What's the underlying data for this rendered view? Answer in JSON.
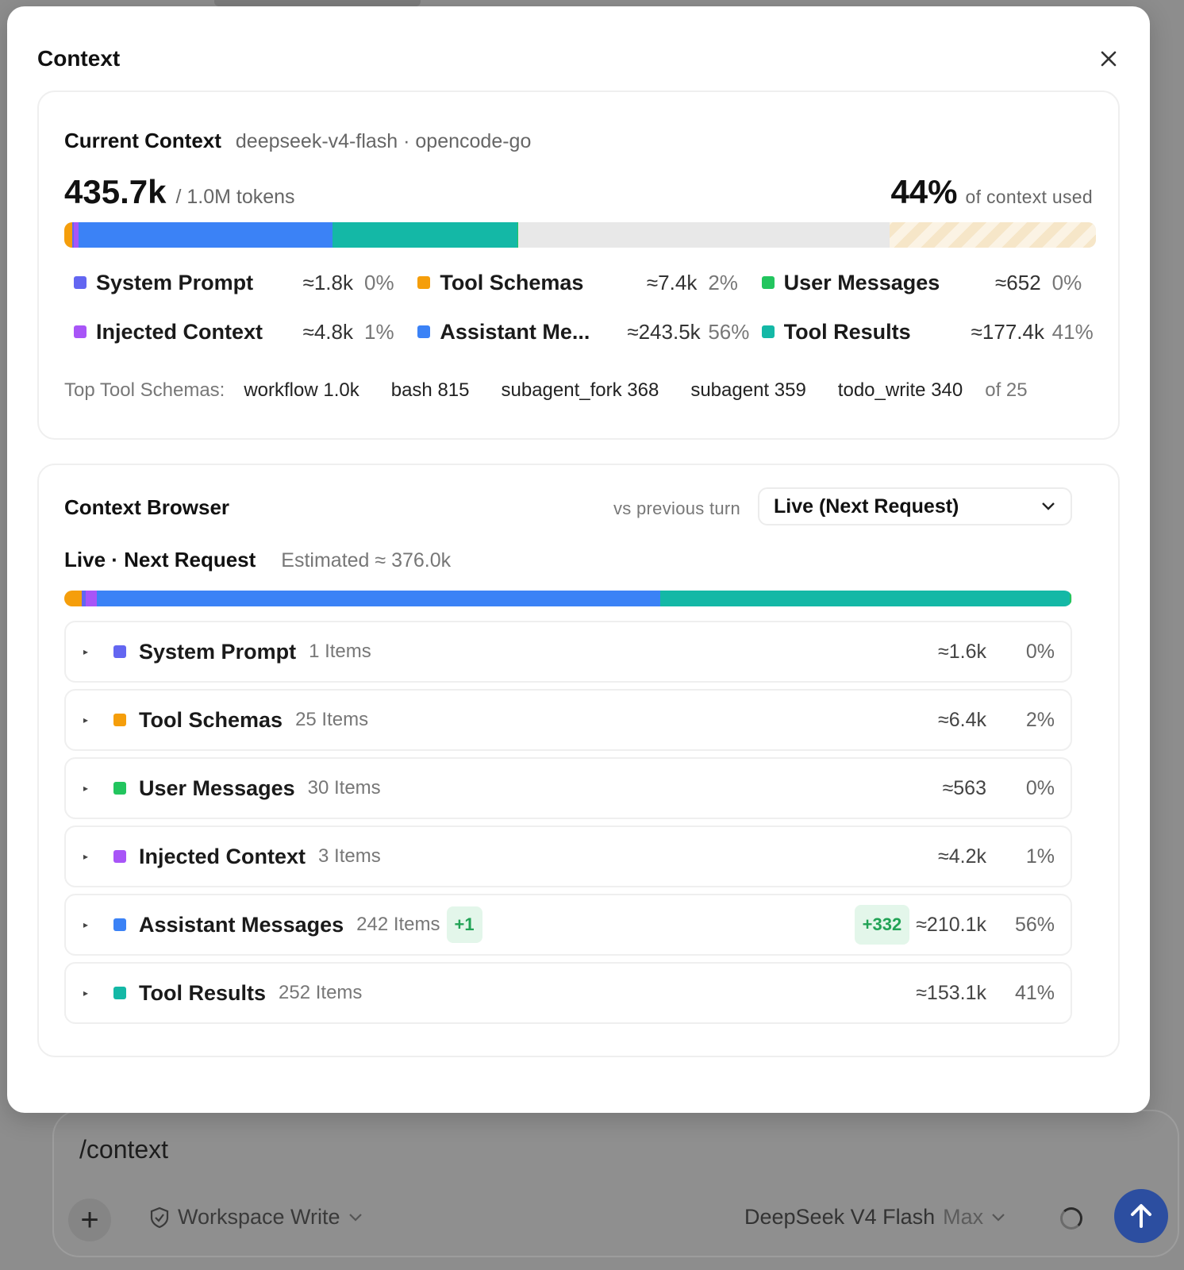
{
  "background": {
    "composer": {
      "input_text": "/context",
      "permission_label": "Workspace Write",
      "model_label": "DeepSeek V4 Flash",
      "model_variant": "Max"
    }
  },
  "modal": {
    "title": "Context",
    "current": {
      "title": "Current Context",
      "model": "deepseek-v4-flash · opencode-go",
      "tokens_used": "435.7k",
      "tokens_total": "/ 1.0M tokens",
      "percent": "44%",
      "percent_label": "of context used",
      "usage_fraction": 0.44,
      "reserved_fraction": 0.2,
      "legend": [
        {
          "name": "System Prompt",
          "value": "≈1.8k",
          "pct": "0%",
          "color": "#6366f1",
          "share": 0.004
        },
        {
          "name": "Tool Schemas",
          "value": "≈7.4k",
          "pct": "2%",
          "color": "#f59e0b",
          "share": 0.017
        },
        {
          "name": "User Messages",
          "value": "≈652",
          "pct": "0%",
          "color": "#22c55e",
          "share": 0.0015
        },
        {
          "name": "Injected Context",
          "value": "≈4.8k",
          "pct": "1%",
          "color": "#a855f7",
          "share": 0.011
        },
        {
          "name": "Assistant Me...",
          "value": "≈243.5k",
          "pct": "56%",
          "color": "#3b82f6",
          "share": 0.559
        },
        {
          "name": "Tool Results",
          "value": "≈177.4k",
          "pct": "41%",
          "color": "#14b8a6",
          "share": 0.407
        }
      ],
      "top_tools_label": "Top Tool Schemas:",
      "top_tools": [
        "workflow 1.0k",
        "bash 815",
        "subagent_fork 368",
        "subagent 359",
        "todo_write 340"
      ],
      "top_tools_count": "of 25"
    },
    "browser": {
      "title": "Context Browser",
      "vs_label": "vs previous turn",
      "select_value": "Live (Next Request)",
      "live_title": "Live · Next Request",
      "estimate": "Estimated ≈ 376.0k",
      "rows": [
        {
          "name": "System Prompt",
          "items": "1 Items",
          "value": "≈1.6k",
          "pct": "0%",
          "color": "#6366f1",
          "share": 0.004
        },
        {
          "name": "Tool Schemas",
          "items": "25 Items",
          "value": "≈6.4k",
          "pct": "2%",
          "color": "#f59e0b",
          "share": 0.017
        },
        {
          "name": "User Messages",
          "items": "30 Items",
          "value": "≈563",
          "pct": "0%",
          "color": "#22c55e",
          "share": 0.0015
        },
        {
          "name": "Injected Context",
          "items": "3 Items",
          "value": "≈4.2k",
          "pct": "1%",
          "color": "#a855f7",
          "share": 0.011
        },
        {
          "name": "Assistant Messages",
          "items": "242 Items",
          "badge": "+1",
          "delta": "+332",
          "value": "≈210.1k",
          "pct": "56%",
          "color": "#3b82f6",
          "share": 0.559
        },
        {
          "name": "Tool Results",
          "items": "252 Items",
          "value": "≈153.1k",
          "pct": "41%",
          "color": "#14b8a6",
          "share": 0.407
        }
      ]
    }
  }
}
